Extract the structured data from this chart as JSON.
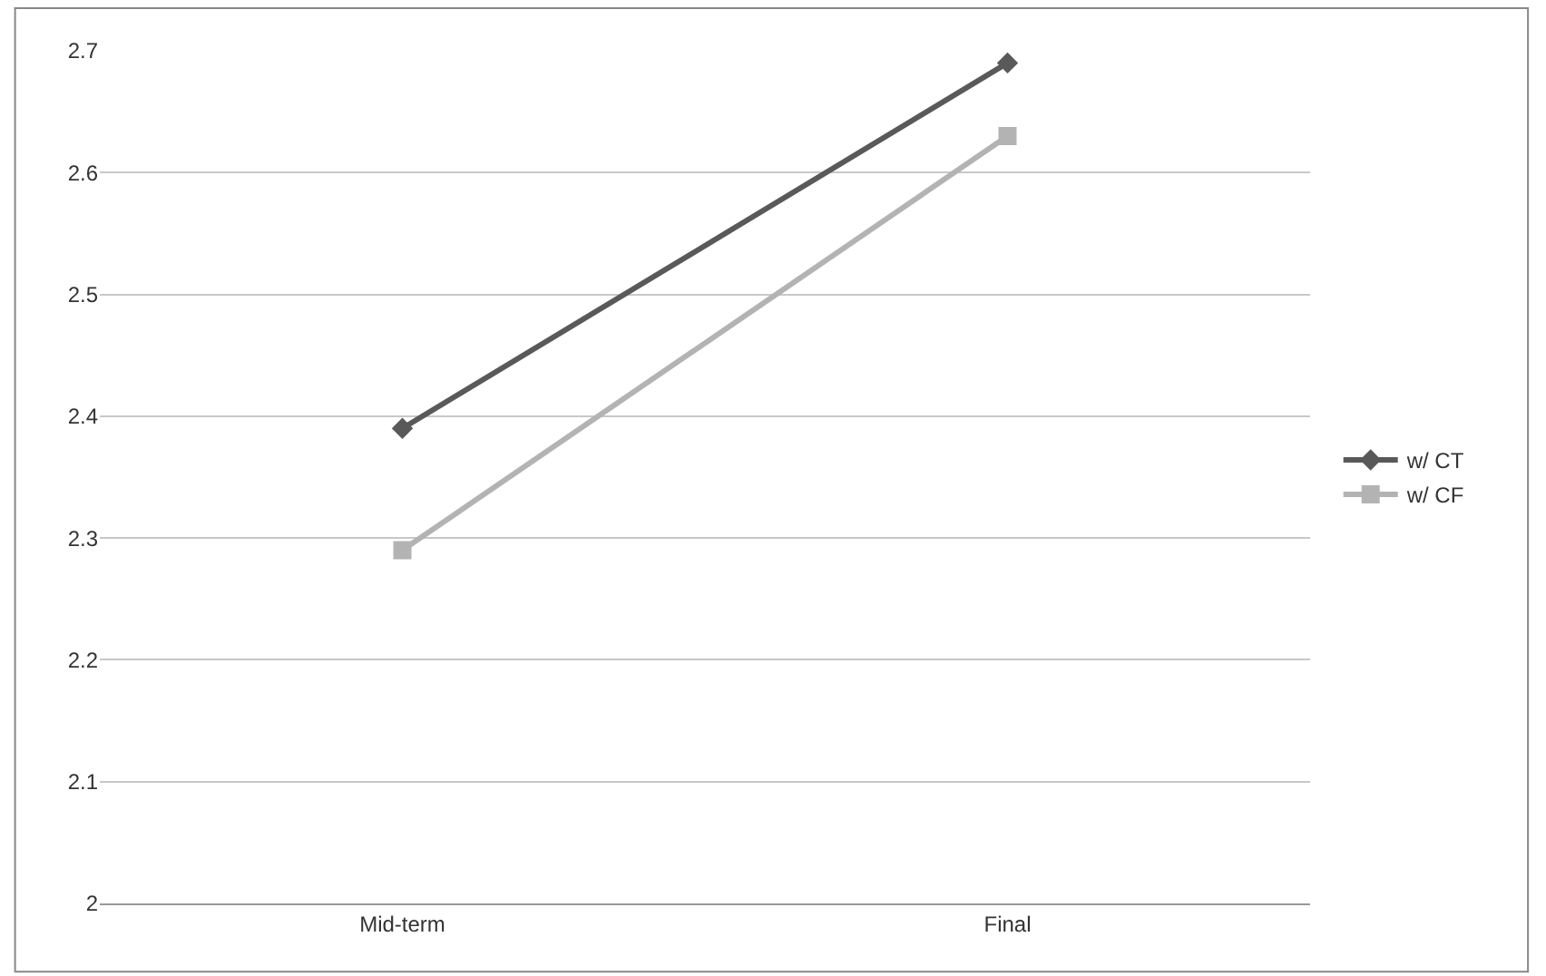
{
  "chart_data": {
    "type": "line",
    "categories": [
      "Mid-term",
      "Final"
    ],
    "series": [
      {
        "name": "w/ CT",
        "color": "#595959",
        "values": [
          2.39,
          2.69
        ],
        "marker": "diamond"
      },
      {
        "name": "w/ CF",
        "color": "#b3b3b3",
        "values": [
          2.29,
          2.63
        ],
        "marker": "square"
      }
    ],
    "ylim": [
      2,
      2.7
    ],
    "yticks": [
      2,
      2.1,
      2.2,
      2.3,
      2.4,
      2.5,
      2.6,
      2.7
    ],
    "grid": "y",
    "legend": "right",
    "line_style": "solid"
  }
}
